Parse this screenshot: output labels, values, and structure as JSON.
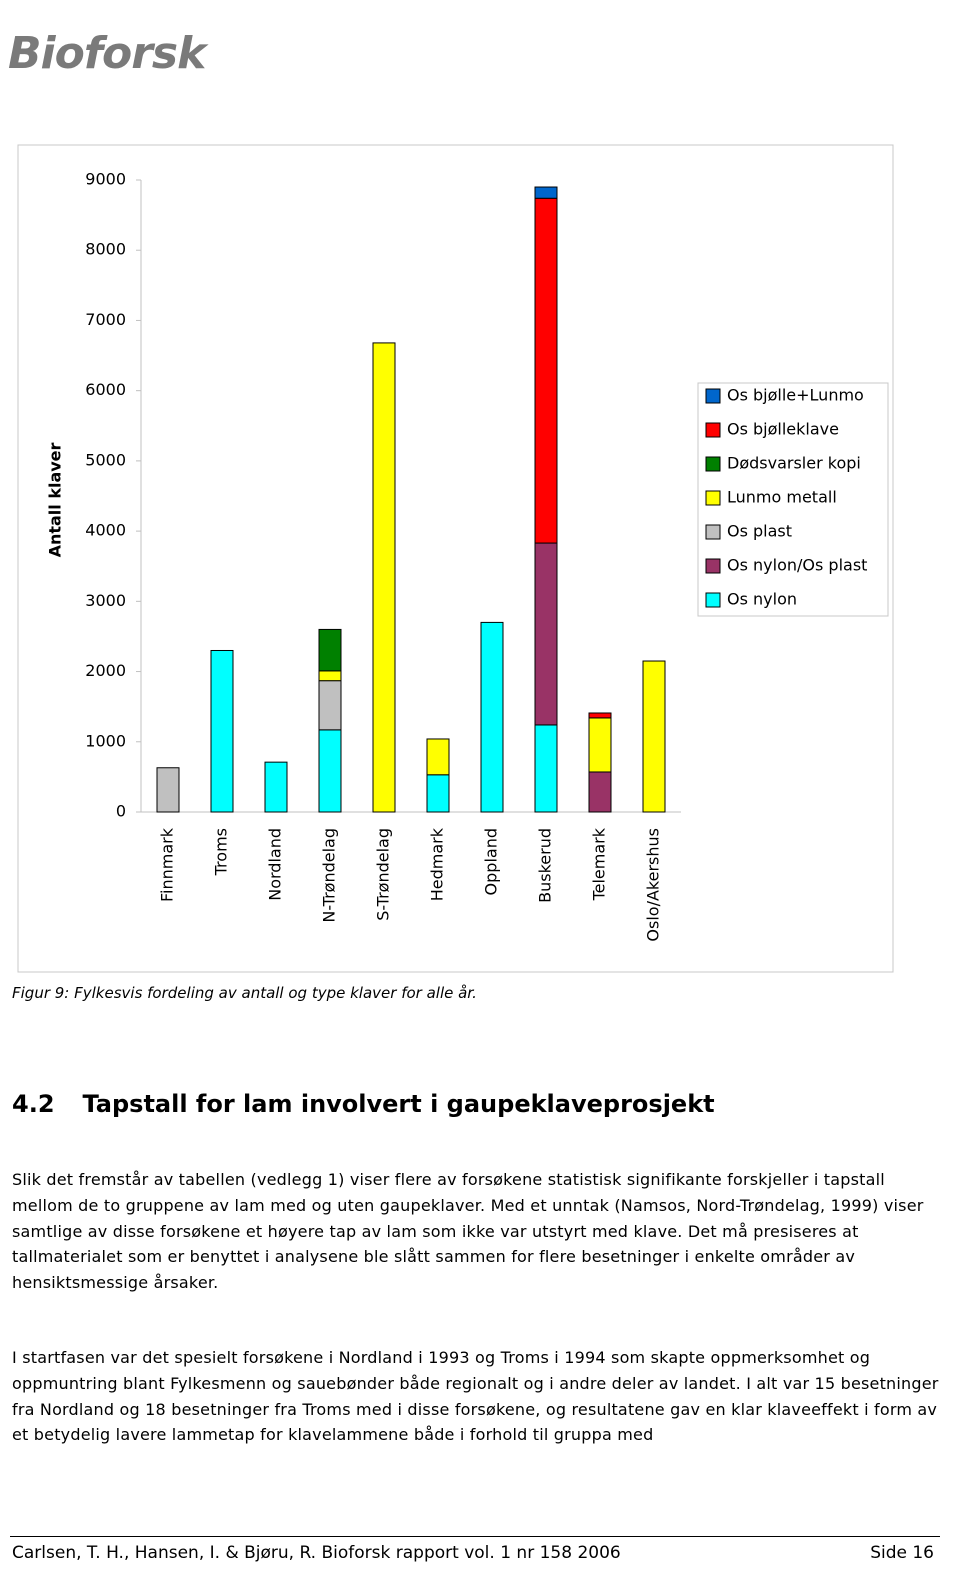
{
  "logo": "Bioforsk",
  "chart_data": {
    "type": "stacked-bar",
    "y_label": "Antall klaver",
    "categories": [
      "Finnmark",
      "Troms",
      "Nordland",
      "N-Trøndelag",
      "S-Trøndelag",
      "Hedmark",
      "Oppland",
      "Buskerud",
      "Telemark",
      "Oslo/Akershus"
    ],
    "series": [
      {
        "name": "Os nylon",
        "color": "#00ffff",
        "values": [
          null,
          2300,
          710,
          1170,
          null,
          530,
          2700,
          1240,
          null,
          null
        ]
      },
      {
        "name": "Os nylon/Os plast",
        "color": "#993366",
        "values": [
          null,
          null,
          null,
          null,
          null,
          null,
          null,
          2590,
          570,
          null
        ]
      },
      {
        "name": "Os plast",
        "color": "#c0c0c0",
        "values": [
          630,
          null,
          null,
          700,
          null,
          null,
          null,
          null,
          null,
          null
        ]
      },
      {
        "name": "Lunmo metall",
        "color": "#ffff00",
        "values": [
          null,
          null,
          null,
          140,
          6680,
          510,
          null,
          null,
          770,
          2150
        ]
      },
      {
        "name": "Dødsvarsler kopi",
        "color": "#008000",
        "values": [
          null,
          null,
          null,
          590,
          null,
          null,
          null,
          null,
          null,
          null
        ]
      },
      {
        "name": "Os bjølleklave",
        "color": "#ff0000",
        "values": [
          null,
          null,
          null,
          null,
          null,
          null,
          null,
          4910,
          70,
          null
        ]
      },
      {
        "name": "Os bjølle+Lunmo",
        "color": "#0066cc",
        "values": [
          null,
          null,
          null,
          null,
          null,
          null,
          null,
          160,
          null,
          null
        ]
      }
    ],
    "ylim": [
      0,
      9000
    ],
    "yticks": [
      0,
      1000,
      2000,
      3000,
      4000,
      5000,
      6000,
      7000,
      8000,
      9000
    ],
    "legend": "right"
  },
  "caption": "Figur 9: Fylkesvis fordeling av antall og type klaver for alle år.",
  "section": {
    "number": "4.2",
    "title": "Tapstall for lam involvert i gaupeklaveprosjekt"
  },
  "paragraphs": [
    "Slik det fremstår av tabellen (vedlegg 1) viser flere av forsøkene statistisk signifikante forskjeller i tapstall mellom de to gruppene av lam med og uten gaupeklaver. Med et unntak (Namsos, Nord-Trøndelag, 1999) viser samtlige av disse forsøkene et høyere tap av lam som ikke var utstyrt med klave. Det må presiseres at tallmaterialet som er benyttet i analysene ble slått sammen for flere besetninger i enkelte områder av hensiktsmessige årsaker.",
    "I startfasen var det spesielt forsøkene i Nordland i 1993 og Troms i 1994 som skapte oppmerksomhet og oppmuntring blant Fylkesmenn og sauebønder både regionalt og i andre deler av landet. I alt var 15 besetninger fra Nordland og 18 besetninger fra Troms med i disse forsøkene, og resultatene gav en klar klaveeffekt i form av et betydelig lavere lammetap for klavelammene både i forhold til gruppa med"
  ],
  "footer": {
    "left": "Carlsen, T. H., Hansen, I. & Bjøru, R. Bioforsk rapport vol. 1 nr 158 2006",
    "right": "Side 16"
  }
}
